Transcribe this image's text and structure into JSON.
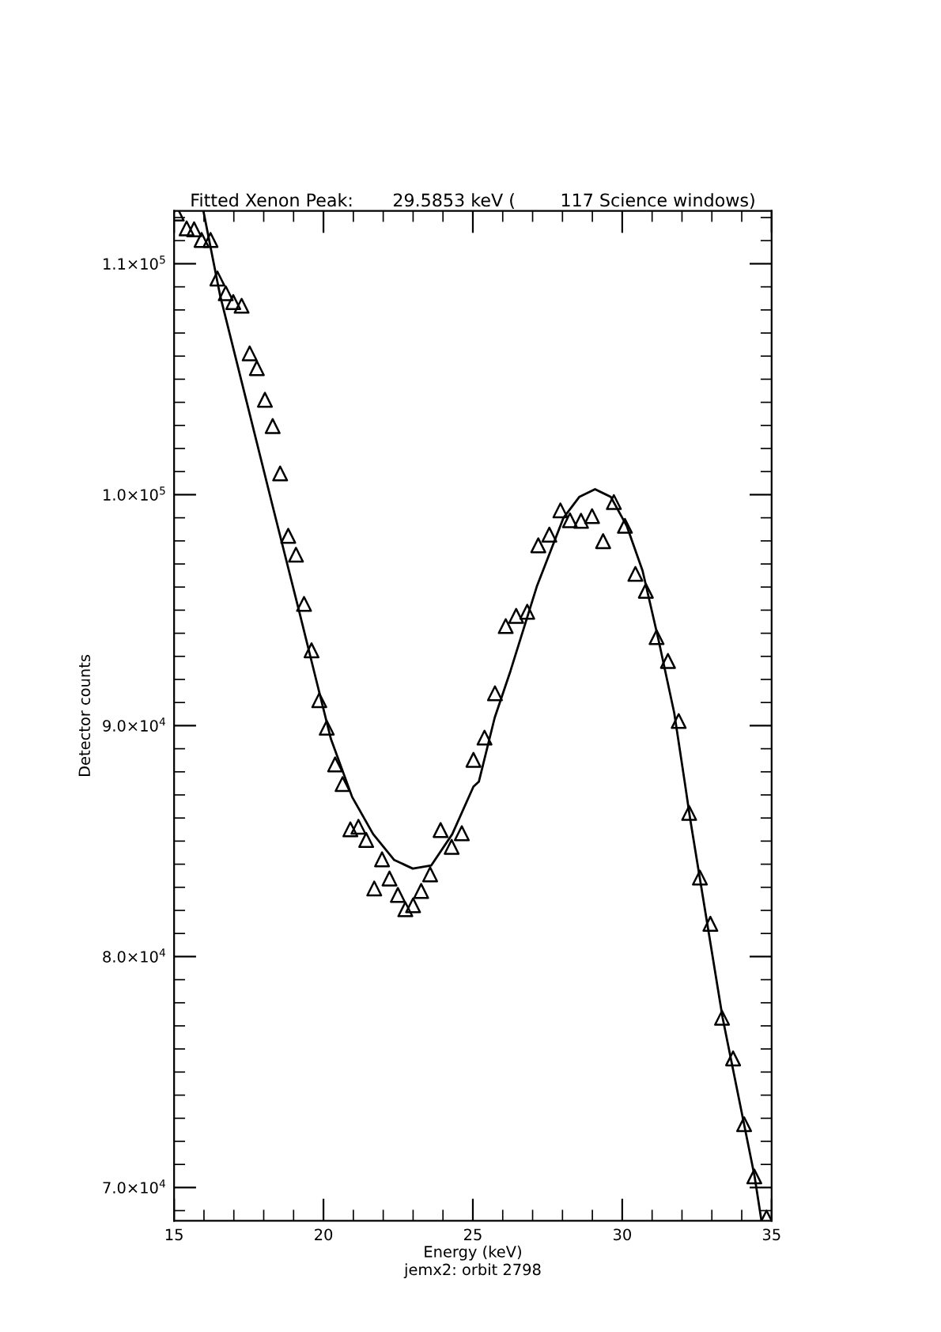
{
  "chart_data": {
    "type": "scatter",
    "title": "Fitted Xenon Peak:       29.5853 keV (        117 Science windows)",
    "xlabel": "Energy (keV)",
    "ylabel": "Detector counts",
    "annotations": [
      "jemx2: orbit 2798"
    ],
    "xlim": [
      15,
      35
    ],
    "xticks": [
      15,
      20,
      25,
      30,
      35
    ],
    "ylim": [
      68560,
      112290
    ],
    "yticks": [
      {
        "value": 70000,
        "label": "7.0×10$^{4}$"
      },
      {
        "value": 80000,
        "label": "8.0×10$^{4}$"
      },
      {
        "value": 90000,
        "label": "9.0×10$^{4}$"
      },
      {
        "value": 100000,
        "label": "1.0×10$^{5}$"
      },
      {
        "value": 110000,
        "label": "1.1×10$^{5}$"
      }
    ],
    "grid": false,
    "legend": false,
    "series": [
      {
        "marker": "triangle",
        "color": "#000000",
        "x": [
          15.09,
          15.42,
          15.67,
          15.92,
          16.22,
          16.45,
          16.73,
          16.98,
          17.26,
          17.53,
          17.77,
          18.04,
          18.3,
          18.55,
          18.82,
          19.08,
          19.35,
          19.6,
          19.86,
          20.11,
          20.39,
          20.64,
          20.9,
          21.17,
          21.43,
          21.7,
          21.96,
          22.21,
          22.49,
          22.74,
          23.0,
          23.27,
          23.57,
          23.92,
          24.29,
          24.63,
          25.02,
          25.39,
          25.74,
          26.1,
          26.45,
          26.82,
          27.19,
          27.56,
          27.93,
          28.25,
          28.62,
          28.99,
          29.36,
          29.72,
          30.09,
          30.44,
          30.79,
          31.15,
          31.53,
          31.89,
          32.24,
          32.6,
          32.95,
          33.34,
          33.71,
          34.08,
          34.42,
          34.83
        ],
        "values": [
          112170,
          111530,
          111490,
          111030,
          111030,
          109360,
          108720,
          108340,
          108180,
          106120,
          105480,
          104110,
          102970,
          100920,
          98220,
          97400,
          95270,
          93260,
          91100,
          89910,
          88320,
          87470,
          85510,
          85620,
          85050,
          82950,
          84210,
          83380,
          82670,
          82050,
          82220,
          82840,
          83560,
          85480,
          84750,
          85340,
          88520,
          89480,
          91400,
          94310,
          94750,
          94930,
          97810,
          98270,
          99320,
          98890,
          98870,
          99070,
          97990,
          99680,
          98650,
          96570,
          95840,
          93830,
          92800,
          90200,
          86220,
          83420,
          81420,
          77350,
          75590,
          72740,
          70480,
          68700
        ]
      },
      {
        "type": "line",
        "marker": "none",
        "line_style": "solid",
        "color": "#000000",
        "x": [
          15.98,
          16.54,
          17.42,
          18.3,
          19.19,
          19.81,
          20.25,
          20.96,
          21.66,
          22.37,
          22.99,
          23.61,
          24.31,
          25.02,
          25.2,
          25.73,
          26.26,
          27.14,
          28.03,
          28.56,
          29.09,
          29.62,
          30.15,
          30.68,
          31.21,
          31.74,
          32.09,
          32.27,
          33.36,
          34.43,
          34.66
        ],
        "values": [
          112290,
          108630,
          104070,
          99500,
          94930,
          91700,
          89420,
          86910,
          85310,
          84180,
          83810,
          83950,
          85300,
          87360,
          87570,
          90340,
          92370,
          96020,
          98990,
          99900,
          100240,
          99900,
          98650,
          96710,
          93740,
          90550,
          87570,
          85990,
          77350,
          70480,
          68560
        ]
      }
    ]
  }
}
